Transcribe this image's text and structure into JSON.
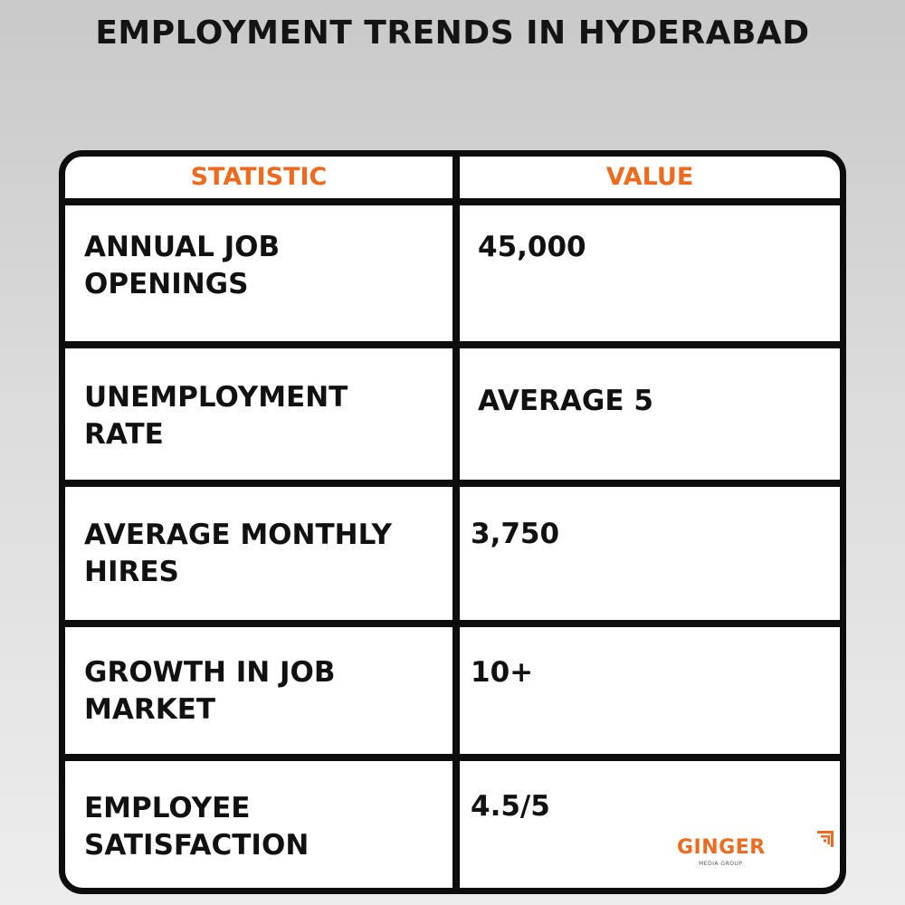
{
  "title": "EMPLOYMENT TRENDS IN HYDERABAD",
  "chart_data": {
    "type": "table",
    "title": "EMPLOYMENT TRENDS IN HYDERABAD",
    "columns": [
      "STATISTIC",
      "VALUE"
    ],
    "rows": [
      {
        "statistic": "ANNUAL JOB\nOPENINGS",
        "value": "45,000"
      },
      {
        "statistic": "UNEMPLOYMENT\nRATE",
        "value": "AVERAGE 5"
      },
      {
        "statistic": "AVERAGE MONTHLY\nHIRES",
        "value": "3,750"
      },
      {
        "statistic": "GROWTH IN JOB\nMARKET",
        "value": "10+"
      },
      {
        "statistic": "EMPLOYEE\nSATISFACTION",
        "value": "4.5/5"
      }
    ]
  },
  "colors": {
    "header_text": "#ee6a1f",
    "border": "#0d0d0d",
    "body_text": "#111111"
  },
  "logo": {
    "word": "GINGER",
    "sub": "MEDIA GROUP"
  }
}
